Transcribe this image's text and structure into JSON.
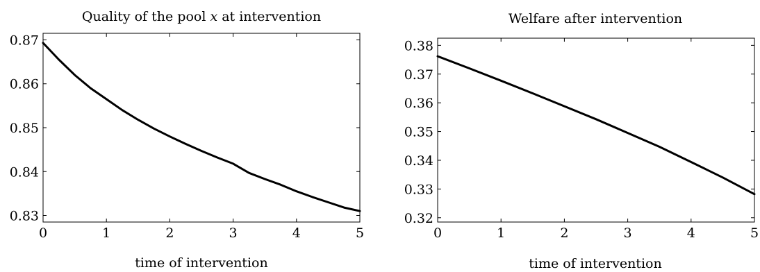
{
  "chart_data": [
    {
      "type": "line",
      "title_parts": [
        "Quality of the pool ",
        "x",
        " at intervention"
      ],
      "xlabel": "time of intervention",
      "ylabel": "",
      "xlim": [
        0,
        5
      ],
      "ylim": [
        0.8285,
        0.8715
      ],
      "xticks": [
        "0",
        "1",
        "2",
        "3",
        "4",
        "5"
      ],
      "yticks": [
        "0.83",
        "0.84",
        "0.85",
        "0.86",
        "0.87"
      ],
      "grid": false,
      "series": [
        {
          "x": [
            0,
            0.25,
            0.5,
            0.75,
            1,
            1.25,
            1.5,
            1.75,
            2,
            2.25,
            2.5,
            2.75,
            3,
            3.25,
            3.5,
            3.75,
            4,
            4.25,
            4.5,
            4.75,
            5
          ],
          "values": [
            0.8693,
            0.8655,
            0.862,
            0.859,
            0.8565,
            0.854,
            0.8518,
            0.8498,
            0.848,
            0.8463,
            0.8447,
            0.8432,
            0.8418,
            0.8397,
            0.8383,
            0.837,
            0.8355,
            0.8342,
            0.833,
            0.8318,
            0.831
          ]
        }
      ]
    },
    {
      "type": "line",
      "title": "Welfare after intervention",
      "xlabel": "time of intervention",
      "ylabel": "",
      "xlim": [
        0,
        5
      ],
      "ylim": [
        0.3185,
        0.3825
      ],
      "xticks": [
        "0",
        "1",
        "2",
        "3",
        "4",
        "5"
      ],
      "yticks": [
        "0.32",
        "0.33",
        "0.34",
        "0.35",
        "0.36",
        "0.37",
        "0.38"
      ],
      "grid": false,
      "series": [
        {
          "x": [
            0,
            0.5,
            1,
            1.5,
            2,
            2.5,
            3,
            3.5,
            4,
            4.5,
            5
          ],
          "values": [
            0.3762,
            0.372,
            0.3677,
            0.3633,
            0.3588,
            0.3543,
            0.3495,
            0.3447,
            0.3394,
            0.334,
            0.3282
          ]
        }
      ]
    }
  ]
}
